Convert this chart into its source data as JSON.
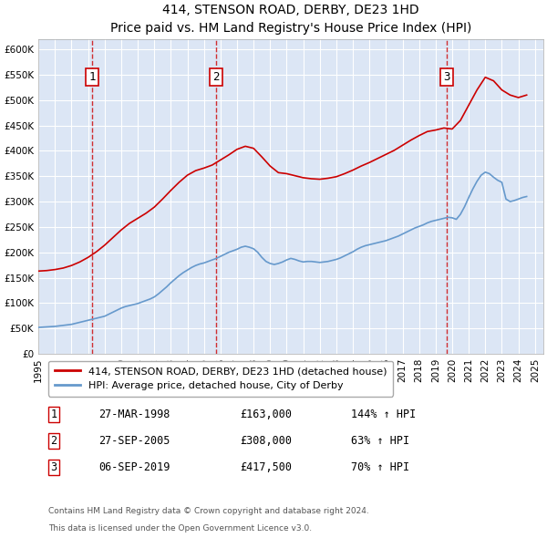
{
  "title": "414, STENSON ROAD, DERBY, DE23 1HD",
  "subtitle": "Price paid vs. HM Land Registry's House Price Index (HPI)",
  "xlabel": "",
  "ylabel": "",
  "ylim": [
    0,
    620000
  ],
  "yticks": [
    0,
    50000,
    100000,
    150000,
    200000,
    250000,
    300000,
    350000,
    400000,
    450000,
    500000,
    550000,
    600000
  ],
  "xlim_start": 1995.0,
  "xlim_end": 2025.5,
  "xticks": [
    1995,
    1996,
    1997,
    1998,
    1999,
    2000,
    2001,
    2002,
    2003,
    2004,
    2005,
    2006,
    2007,
    2008,
    2009,
    2010,
    2011,
    2012,
    2013,
    2014,
    2015,
    2016,
    2017,
    2018,
    2019,
    2020,
    2021,
    2022,
    2023,
    2024,
    2025
  ],
  "background_color": "#dce6f5",
  "plot_bg_color": "#dce6f5",
  "grid_color": "#ffffff",
  "sale_color": "#cc0000",
  "hpi_color": "#6699cc",
  "sale_dates": [
    1998.23,
    2005.74,
    2019.68
  ],
  "sale_prices": [
    163000,
    308000,
    417500
  ],
  "sale_labels": [
    "1",
    "2",
    "3"
  ],
  "legend_sale": "414, STENSON ROAD, DERBY, DE23 1HD (detached house)",
  "legend_hpi": "HPI: Average price, detached house, City of Derby",
  "table_rows": [
    {
      "num": "1",
      "date": "27-MAR-1998",
      "price": "£163,000",
      "change": "144% ↑ HPI"
    },
    {
      "num": "2",
      "date": "27-SEP-2005",
      "price": "£308,000",
      "change": "63% ↑ HPI"
    },
    {
      "num": "3",
      "date": "06-SEP-2019",
      "price": "£417,500",
      "change": "70% ↑ HPI"
    }
  ],
  "footnote1": "Contains HM Land Registry data © Crown copyright and database right 2024.",
  "footnote2": "This data is licensed under the Open Government Licence v3.0.",
  "hpi_data": {
    "years": [
      1995.0,
      1995.25,
      1995.5,
      1995.75,
      1996.0,
      1996.25,
      1996.5,
      1996.75,
      1997.0,
      1997.25,
      1997.5,
      1997.75,
      1998.0,
      1998.25,
      1998.5,
      1998.75,
      1999.0,
      1999.25,
      1999.5,
      1999.75,
      2000.0,
      2000.25,
      2000.5,
      2000.75,
      2001.0,
      2001.25,
      2001.5,
      2001.75,
      2002.0,
      2002.25,
      2002.5,
      2002.75,
      2003.0,
      2003.25,
      2003.5,
      2003.75,
      2004.0,
      2004.25,
      2004.5,
      2004.75,
      2005.0,
      2005.25,
      2005.5,
      2005.75,
      2006.0,
      2006.25,
      2006.5,
      2006.75,
      2007.0,
      2007.25,
      2007.5,
      2007.75,
      2008.0,
      2008.25,
      2008.5,
      2008.75,
      2009.0,
      2009.25,
      2009.5,
      2009.75,
      2010.0,
      2010.25,
      2010.5,
      2010.75,
      2011.0,
      2011.25,
      2011.5,
      2011.75,
      2012.0,
      2012.25,
      2012.5,
      2012.75,
      2013.0,
      2013.25,
      2013.5,
      2013.75,
      2014.0,
      2014.25,
      2014.5,
      2014.75,
      2015.0,
      2015.25,
      2015.5,
      2015.75,
      2016.0,
      2016.25,
      2016.5,
      2016.75,
      2017.0,
      2017.25,
      2017.5,
      2017.75,
      2018.0,
      2018.25,
      2018.5,
      2018.75,
      2019.0,
      2019.25,
      2019.5,
      2019.75,
      2020.0,
      2020.25,
      2020.5,
      2020.75,
      2021.0,
      2021.25,
      2021.5,
      2021.75,
      2022.0,
      2022.25,
      2022.5,
      2022.75,
      2023.0,
      2023.25,
      2023.5,
      2023.75,
      2024.0,
      2024.25,
      2024.5
    ],
    "values": [
      52000,
      52500,
      53000,
      53500,
      54000,
      55000,
      56000,
      57000,
      58000,
      60000,
      62000,
      64000,
      66000,
      68000,
      70000,
      72000,
      74000,
      78000,
      82000,
      86000,
      90000,
      93000,
      95000,
      97000,
      99000,
      102000,
      105000,
      108000,
      112000,
      118000,
      125000,
      132000,
      140000,
      147000,
      154000,
      160000,
      165000,
      170000,
      174000,
      177000,
      179000,
      182000,
      185000,
      188000,
      192000,
      196000,
      200000,
      203000,
      206000,
      210000,
      212000,
      210000,
      207000,
      200000,
      190000,
      182000,
      178000,
      176000,
      178000,
      181000,
      185000,
      188000,
      186000,
      183000,
      181000,
      182000,
      182000,
      181000,
      180000,
      181000,
      182000,
      184000,
      186000,
      189000,
      193000,
      197000,
      201000,
      206000,
      210000,
      213000,
      215000,
      217000,
      219000,
      221000,
      223000,
      226000,
      229000,
      232000,
      236000,
      240000,
      244000,
      248000,
      251000,
      254000,
      258000,
      261000,
      263000,
      265000,
      267000,
      269000,
      268000,
      265000,
      275000,
      290000,
      308000,
      325000,
      340000,
      352000,
      358000,
      355000,
      348000,
      342000,
      338000,
      305000,
      300000,
      302000,
      305000,
      308000,
      310000
    ]
  },
  "sale_hpi_data": {
    "years": [
      1995.0,
      1995.5,
      1996.0,
      1996.5,
      1997.0,
      1997.5,
      1998.0,
      1998.5,
      1999.0,
      1999.5,
      2000.0,
      2000.5,
      2001.0,
      2001.5,
      2002.0,
      2002.5,
      2003.0,
      2003.5,
      2004.0,
      2004.5,
      2005.0,
      2005.5,
      2006.0,
      2006.5,
      2007.0,
      2007.5,
      2008.0,
      2008.5,
      2009.0,
      2009.5,
      2010.0,
      2010.5,
      2011.0,
      2011.5,
      2012.0,
      2012.5,
      2013.0,
      2013.5,
      2014.0,
      2014.5,
      2015.0,
      2015.5,
      2016.0,
      2016.5,
      2017.0,
      2017.5,
      2018.0,
      2018.5,
      2019.0,
      2019.5,
      2020.0,
      2020.5,
      2021.0,
      2021.5,
      2022.0,
      2022.5,
      2023.0,
      2023.5,
      2024.0,
      2024.5
    ],
    "values": [
      163000,
      164000,
      166000,
      169000,
      174000,
      181000,
      190000,
      201000,
      214000,
      229000,
      244000,
      257000,
      267000,
      277000,
      289000,
      305000,
      322000,
      338000,
      352000,
      361000,
      366000,
      372000,
      382000,
      392000,
      403000,
      409000,
      405000,
      388000,
      370000,
      357000,
      355000,
      351000,
      347000,
      345000,
      344000,
      346000,
      349000,
      355000,
      362000,
      370000,
      377000,
      385000,
      393000,
      401000,
      411000,
      421000,
      430000,
      438000,
      441000,
      445000,
      443000,
      460000,
      490000,
      520000,
      545000,
      538000,
      520000,
      510000,
      505000,
      510000
    ]
  }
}
